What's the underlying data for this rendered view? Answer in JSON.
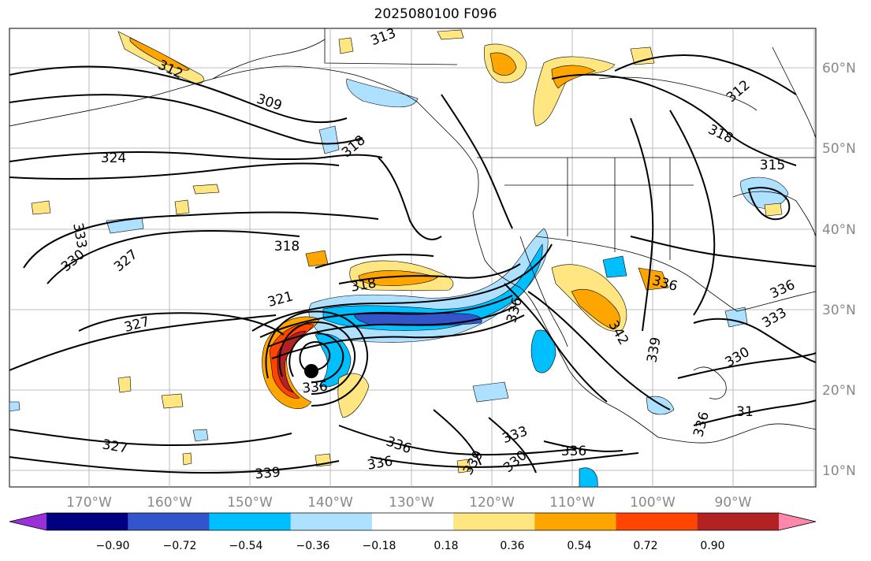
{
  "title": "2025080100 F096",
  "longitude_labels": [
    "170°W",
    "160°W",
    "150°W",
    "140°W",
    "130°W",
    "120°W",
    "110°W",
    "100°W",
    "90°W"
  ],
  "latitude_labels": [
    "60°N",
    "50°N",
    "40°N",
    "30°N",
    "20°N",
    "10°N"
  ],
  "contour_labels": [
    "312",
    "313",
    "309",
    "312",
    "318",
    "324",
    "318",
    "315",
    "333",
    "330",
    "327",
    "318",
    "321",
    "318",
    "327",
    "336",
    "327",
    "339",
    "336",
    "336",
    "333",
    "330",
    "339",
    "336",
    "336",
    "342",
    "339",
    "336",
    "330",
    "333",
    "336",
    "336",
    "31"
  ],
  "colorbar": {
    "colors": [
      "#9b30d9",
      "#000080",
      "#3355cc",
      "#00bfff",
      "#aee0ff",
      "#ffffff",
      "#ffe680",
      "#ffa500",
      "#ff4500",
      "#b22222",
      "#ff88aa"
    ],
    "tick_labels": [
      "−0.90",
      "−0.72",
      "−0.54",
      "−0.36",
      "−0.18",
      "0.18",
      "0.36",
      "0.54",
      "0.72",
      "0.90"
    ]
  },
  "storm_marker": "tropical-cyclone-center"
}
